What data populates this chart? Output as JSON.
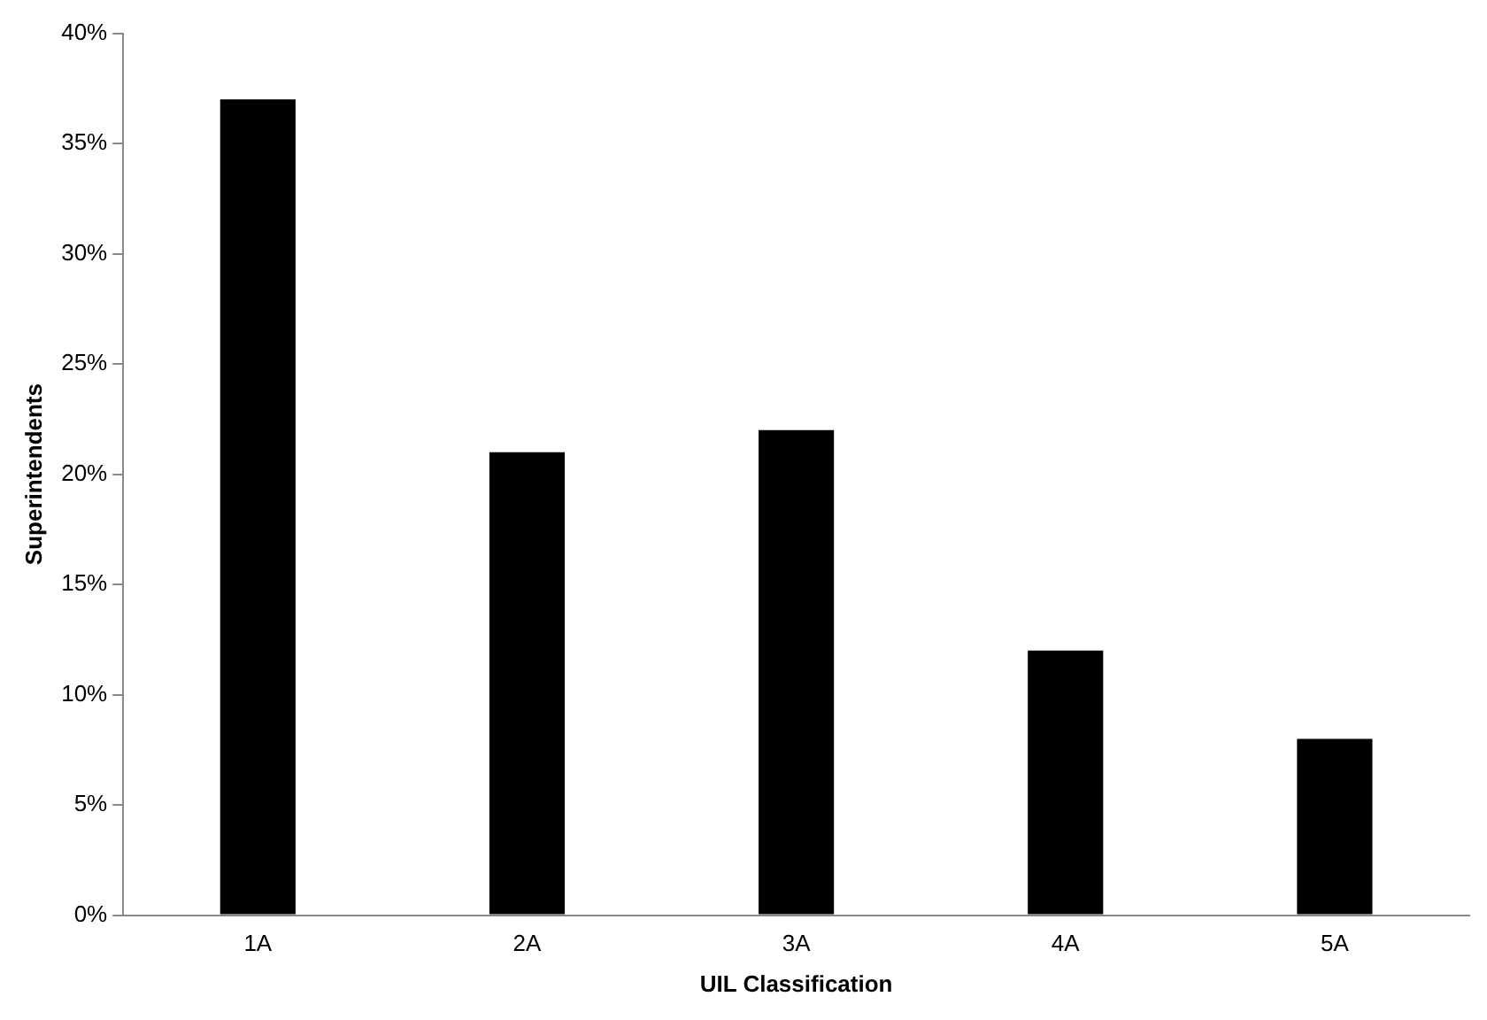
{
  "chart_data": {
    "type": "bar",
    "xlabel": "UIL Classification",
    "ylabel": "Superintendents",
    "categories": [
      "1A",
      "2A",
      "3A",
      "4A",
      "5A"
    ],
    "values": [
      37,
      21,
      22,
      12,
      8
    ],
    "color": "#000000",
    "ylim": [
      0,
      40
    ],
    "yticks": [
      {
        "value": 0,
        "label": "0%"
      },
      {
        "value": 5,
        "label": "5%"
      },
      {
        "value": 10,
        "label": "10%"
      },
      {
        "value": 15,
        "label": "15%"
      },
      {
        "value": 20,
        "label": "20%"
      },
      {
        "value": 25,
        "label": "25%"
      },
      {
        "value": 30,
        "label": "30%"
      },
      {
        "value": 35,
        "label": "35%"
      },
      {
        "value": 40,
        "label": "40%"
      }
    ],
    "grid": false,
    "legend": false
  }
}
